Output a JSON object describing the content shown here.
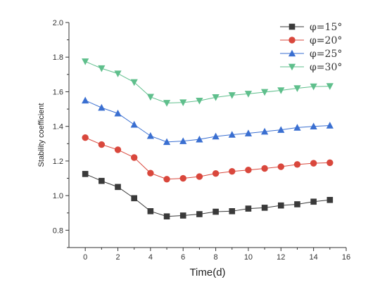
{
  "chart_data": {
    "type": "line",
    "title": "",
    "xlabel": "Time(d)",
    "ylabel": "Stability coefficient",
    "xlim": [
      -1,
      16
    ],
    "ylim": [
      0.7,
      2.0
    ],
    "xticks": [
      "0",
      "2",
      "4",
      "6",
      "8",
      "10",
      "12",
      "14",
      "16"
    ],
    "yticks": [
      "0.8",
      "1.0",
      "1.2",
      "1.4",
      "1.6",
      "1.8",
      "2.0"
    ],
    "grid": false,
    "legend_position": "top-right",
    "x": [
      0,
      1,
      2,
      3,
      4,
      5,
      6,
      7,
      8,
      9,
      10,
      11,
      12,
      13,
      14,
      15
    ],
    "series": [
      {
        "name": "φ=15°",
        "marker": "square",
        "color": "#3a3a3a",
        "values": [
          1.125,
          1.085,
          1.05,
          0.985,
          0.91,
          0.88,
          0.885,
          0.893,
          0.907,
          0.91,
          0.925,
          0.93,
          0.943,
          0.95,
          0.965,
          0.975
        ]
      },
      {
        "name": "φ=20°",
        "marker": "circle",
        "color": "#d9473c",
        "values": [
          1.335,
          1.295,
          1.265,
          1.22,
          1.13,
          1.095,
          1.1,
          1.11,
          1.128,
          1.14,
          1.148,
          1.157,
          1.167,
          1.18,
          1.187,
          1.19
        ]
      },
      {
        "name": "φ=25°",
        "marker": "triangle-up",
        "color": "#3a6fd1",
        "values": [
          1.55,
          1.508,
          1.475,
          1.41,
          1.345,
          1.31,
          1.315,
          1.325,
          1.342,
          1.352,
          1.36,
          1.37,
          1.38,
          1.393,
          1.4,
          1.405
        ]
      },
      {
        "name": "φ=30°",
        "marker": "triangle-down",
        "color": "#5fbf8c",
        "values": [
          1.775,
          1.735,
          1.705,
          1.655,
          1.57,
          1.535,
          1.538,
          1.548,
          1.568,
          1.58,
          1.588,
          1.598,
          1.608,
          1.62,
          1.63,
          1.632
        ]
      }
    ]
  }
}
